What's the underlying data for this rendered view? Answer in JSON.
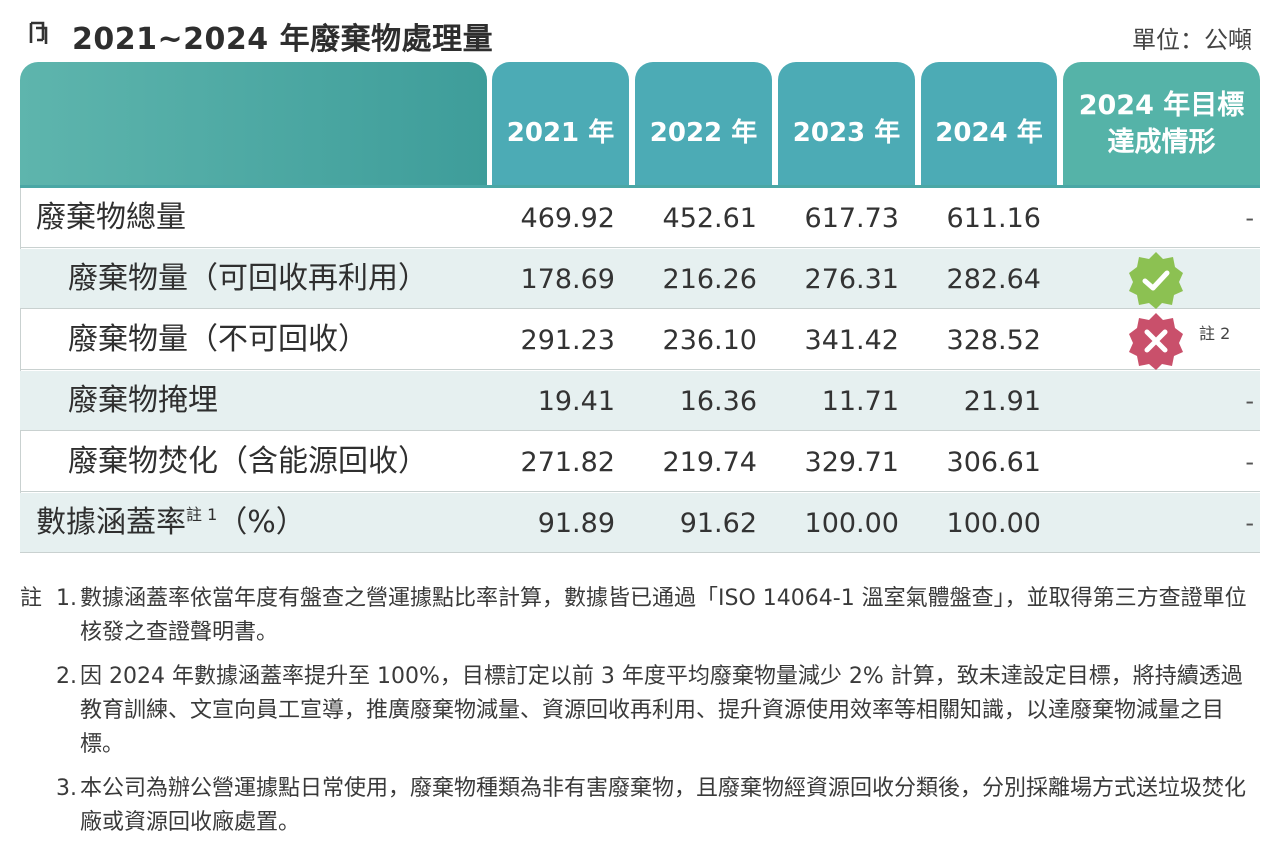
{
  "title": "2021~2024 年廢棄物處理量",
  "unit": "單位：公噸",
  "header": {
    "years": [
      "2021 年",
      "2022 年",
      "2023 年",
      "2024 年"
    ],
    "goal_line1": "2024 年目標",
    "goal_line2": "達成情形"
  },
  "rows": [
    {
      "label": "廢棄物總量",
      "values": [
        "469.92",
        "452.61",
        "617.73",
        "611.16"
      ],
      "goal": "-"
    },
    {
      "label": "廢棄物量（可回收再利用）",
      "values": [
        "178.69",
        "216.26",
        "276.31",
        "282.64"
      ],
      "goal_status": "achieved"
    },
    {
      "label": "廢棄物量（不可回收）",
      "values": [
        "291.23",
        "236.10",
        "341.42",
        "328.52"
      ],
      "goal_status": "not-achieved",
      "goal_note": "註 2"
    },
    {
      "label": "廢棄物掩埋",
      "values": [
        "19.41",
        "16.36",
        "11.71",
        "21.91"
      ],
      "goal": "-"
    },
    {
      "label": "廢棄物焚化（含能源回收）",
      "values": [
        "271.82",
        "219.74",
        "329.71",
        "306.61"
      ],
      "goal": "-"
    },
    {
      "label": "數據涵蓋率",
      "label_sup": "註 1",
      "label_suffix": "（%）",
      "values": [
        "91.89",
        "91.62",
        "100.00",
        "100.00"
      ],
      "goal": "-"
    }
  ],
  "colors": {
    "header_teal": "#4cabb5",
    "row_shade": "#e6f0f0",
    "check_green": "#8cc152",
    "cross_red": "#c9506b"
  },
  "icons": {
    "title": "bookmark-icon",
    "achieved": "check-badge-icon",
    "not_achieved": "cross-badge-icon"
  },
  "notes": [
    {
      "tag": "註",
      "num": "1.",
      "text": "數據涵蓋率依當年度有盤查之營運據點比率計算，數據皆已通過「ISO 14064-1 溫室氣體盤查」，並取得第三方查證單位核發之查證聲明書。"
    },
    {
      "tag": "",
      "num": "2.",
      "text": "因 2024 年數據涵蓋率提升至 100%，目標訂定以前 3 年度平均廢棄物量減少 2% 計算，致未達設定目標，將持續透過教育訓練、文宣向員工宣導，推廣廢棄物減量、資源回收再利用、提升資源使用效率等相關知識，以達廢棄物減量之目標。"
    },
    {
      "tag": "",
      "num": "3.",
      "text": "本公司為辦公營運據點日常使用，廢棄物種類為非有害廢棄物，且廢棄物經資源回收分類後，分別採離場方式送垃圾焚化廠或資源回收廠處置。"
    }
  ]
}
